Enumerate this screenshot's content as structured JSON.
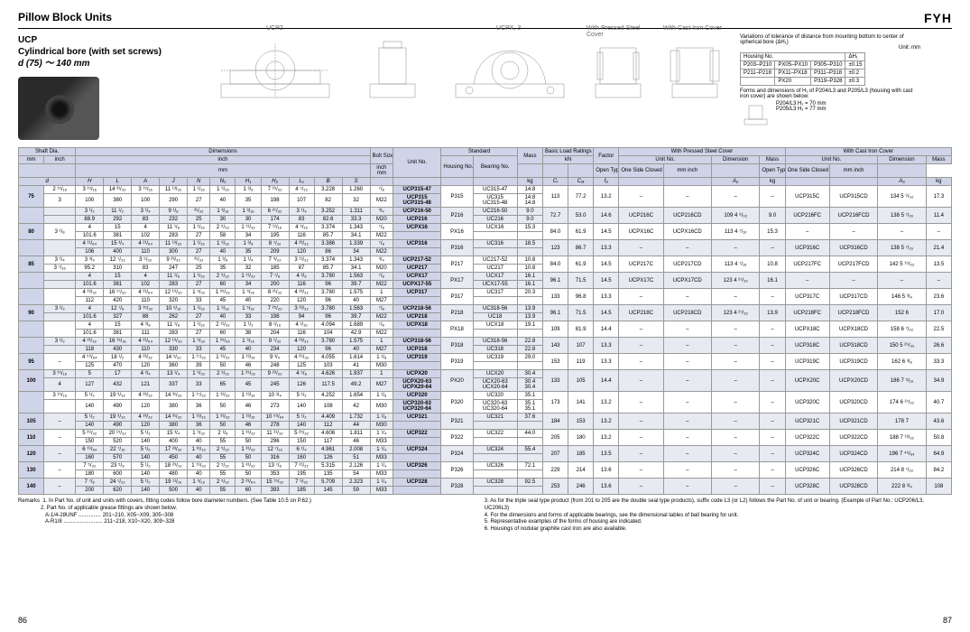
{
  "header": {
    "title": "Pillow Block Units",
    "brand": "FYH"
  },
  "subtitle": {
    "series": "UCP",
    "desc": "Cylindrical bore (with set screws)",
    "range": "d  (75) ～ 140 mm"
  },
  "diagram_labels": {
    "ucp2": "UCP2",
    "ucpx3": "UCPX, 3",
    "pressed": "With Pressed Steel Cover",
    "cast": "With Cast Iron Cover"
  },
  "info_right": {
    "note": "Variations of tolerance of distance from mounting bottom to center of spherical bore (ΔH₁)",
    "unit": "Unit: mm",
    "cols": [
      "Housing No.",
      "",
      "ΔH₁"
    ],
    "rows": [
      [
        "P203–P210",
        "PX05–PX10",
        "P305–P310",
        "±0.15"
      ],
      [
        "P211–P218",
        "PX11–PX18",
        "P311–P318",
        "±0.2"
      ],
      [
        "",
        "PX20",
        "P319–P328",
        "±0.3"
      ]
    ],
    "forms_note": "Forms and dimensions of H₁ of P204/L3 and P205/L3 (housing with cast iron cover) are shown below:",
    "forms_detail1": "P204/L3  H₁ = 70 mm",
    "forms_detail2": "P205/L3  H₁ = 77 mm"
  },
  "col_groups": {
    "shaft": "Shaft Dia.",
    "dimensions": "Dimensions",
    "bolt": "Bolt Size",
    "unitno": "Unit No.",
    "standard": "Standard",
    "housing": "Housing No.",
    "bearing": "Bearing No.",
    "mass": "Mass",
    "basic": "Basic Load Ratings",
    "factor": "Factor",
    "pressed": "With Pressed Steel Cover",
    "cast": "With Cast Iron Cover",
    "open": "Open Type",
    "closed": "One Side Closed Type",
    "dim": "Dimension"
  },
  "unit_labels": {
    "mm": "mm",
    "inch": "inch",
    "kg": "kg",
    "kN": "kN"
  },
  "dim_syms": [
    "d",
    "H",
    "L",
    "A",
    "J",
    "N",
    "N₁",
    "H₁",
    "H₂",
    "L₁",
    "B",
    "S"
  ],
  "load_syms": [
    "Cᵣ",
    "C₀ᵣ",
    "f₀"
  ],
  "cover_syms": [
    "A₂",
    "A₃"
  ],
  "rows": [
    {
      "d_mm": "75",
      "d_in1": "2 ¹⁵/₁₆",
      "d_in2": "3",
      "d1": [
        "3 ¹⁵/₁₆",
        "14 ³¹/₃₂",
        "3 ¹⁵/₁₆",
        "11 ¹³/₃₂",
        "1 ¹/₁₆",
        "1 ⁹/₁₆",
        "1 ³/₈",
        "7 ²⁵/₃₂",
        "4 ⁷/₃₂",
        "3.228",
        "1.260",
        "⁷/₈"
      ],
      "d2": [
        "100",
        "380",
        "100",
        "290",
        "27",
        "40",
        "35",
        "198",
        "107",
        "82",
        "32",
        "M22"
      ],
      "units": [
        "UCP315-47",
        "UCP315",
        "UCP315-48"
      ],
      "hous": "P315",
      "bear": [
        "UC315-47",
        "UC315",
        "UC315-48"
      ],
      "mass": [
        "14.8",
        "14.8",
        "14.8"
      ],
      "cr": "113",
      "cor": "77.2",
      "f0": "13.2",
      "po": "–",
      "pc": "–",
      "pdim": "–",
      "pmass": "–",
      "co": "UCP315C",
      "cc": "UCP315CD",
      "cdim": "134  5 ⁹/₃₂",
      "cmass": "17.3"
    },
    {
      "d_mm": "",
      "d_in1": "",
      "d_in2": "",
      "d1": [
        "3 ¹/₂",
        "11 ¹/₂",
        "3 ¹/₄",
        "9 ¹/₈",
        "³¹/₃₂",
        "1 ³/₁₆",
        "1 ³/₁₆",
        "6 ²⁷/₃₂",
        "3 ¹/₄",
        "3.252",
        "1.311",
        "³/₄"
      ],
      "d2": [
        "88.9",
        "292",
        "83",
        "232",
        "25",
        "30",
        "30",
        "174",
        "83",
        "82.6",
        "33.3",
        "M20"
      ],
      "units": [
        "UCP216-50",
        "UCP216"
      ],
      "hous": "P216",
      "bear": [
        "UC216-50",
        "UC216"
      ],
      "mass": [
        "9.0",
        "9.0"
      ],
      "cr": "72.7",
      "cor": "53.0",
      "f0": "14.6",
      "po": "UCP216C",
      "pc": "UCP216CD",
      "pdim": "109  4 ⁹/₃₂",
      "pmass": "9.0",
      "co": "UCP216FC",
      "cc": "UCP216FCD",
      "cdim": "138  5 ⁷/₁₆",
      "cmass": "11.4"
    },
    {
      "d_mm": "80",
      "d_in1": "3 ¹/₈",
      "d_in2": "",
      "d1": [
        "4",
        "15",
        "4",
        "11 ¹/₈",
        "1 ¹/₁₆",
        "2 ⁹/₃₂",
        "1 ¹¹/₃₂",
        "7 ¹¹/₁₆",
        "4 ⁹/₁₆",
        "3.374",
        "1.343",
        "⁷/₈"
      ],
      "d2": [
        "101.6",
        "381",
        "102",
        "283",
        "27",
        "58",
        "34",
        "195",
        "116",
        "85.7",
        "34.1",
        "M22"
      ],
      "units": [
        "UCPX16"
      ],
      "hous": "PX16",
      "bear": [
        "UCX16"
      ],
      "mass": [
        "15.3"
      ],
      "cr": "84.0",
      "cor": "61.9",
      "f0": "14.5",
      "po": "UCPX16C",
      "pc": "UCPX16CD",
      "pdim": "113  4 ⁷/₁₆",
      "pmass": "15.3",
      "co": "–",
      "cc": "–",
      "cdim": "–",
      "cmass": "–"
    },
    {
      "d_mm": "",
      "d_in1": "",
      "d_in2": "",
      "d1": [
        "4 ¹¹/₆₄",
        "15 ³/₄",
        "4 ²¹/₆₄",
        "11 ¹³/₃₂",
        "1 ¹/₁₆",
        "1 ⁹/₁₆",
        "1 ³/₈",
        "8 ⁷/₃₂",
        "4 ²³/₃₂",
        "3.386",
        "1.339",
        "⁷/₈"
      ],
      "d2": [
        "106",
        "400",
        "110",
        "300",
        "27",
        "40",
        "35",
        "209",
        "120",
        "86",
        "34",
        "M22"
      ],
      "units": [
        "UCP316"
      ],
      "hous": "P316",
      "bear": [
        "UC316"
      ],
      "mass": [
        "18.5"
      ],
      "cr": "123",
      "cor": "86.7",
      "f0": "13.3",
      "po": "–",
      "pc": "–",
      "pdim": "–",
      "pmass": "–",
      "co": "UCP316C",
      "cc": "UCP316CD",
      "cdim": "138  5 ⁷/₁₆",
      "cmass": "21.4"
    },
    {
      "d_mm": "85",
      "d_in1": "3 ¹/₄",
      "d_in2": "3 ⁷/₁₆",
      "d1": [
        "3 ³/₄",
        "12 ⁷/₃₂",
        "3 ⁹/₃₂",
        "9 ²³/₃₂",
        "³¹/₃₂",
        "1 ³/₈",
        "1 ¹/₄",
        "7 ⁹/₃₂",
        "3 ¹¹/₃₂",
        "3.374",
        "1.343",
        "³/₄"
      ],
      "d2": [
        "95.2",
        "310",
        "83",
        "247",
        "25",
        "35",
        "32",
        "185",
        "87",
        "85.7",
        "34.1",
        "M20"
      ],
      "units": [
        "UCP217-52",
        "UCP217"
      ],
      "hous": "P217",
      "bear": [
        "UC217-52",
        "UC217"
      ],
      "mass": [
        "10.8",
        "10.8"
      ],
      "cr": "84.0",
      "cor": "61.9",
      "f0": "14.5",
      "po": "UCP217C",
      "pc": "UCP217CD",
      "pdim": "113  4 ⁷/₁₆",
      "pmass": "10.8",
      "co": "UCP217FC",
      "cc": "UCP217FCD",
      "cdim": "142  5 ¹⁹/₃₂",
      "cmass": "13.5"
    },
    {
      "d_mm": "",
      "d_in1": "",
      "d_in2": "",
      "d1": [
        "4",
        "15",
        "4",
        "11 ¹/₈",
        "1 ¹/₁₆",
        "2 ⁹/₃₂",
        "1 ¹¹/₃₂",
        "7 ⁷/₈",
        "4 ³/₈",
        "3.780",
        "1.563",
        "⁷/₈"
      ],
      "d2": [
        "101.6",
        "381",
        "102",
        "283",
        "27",
        "60",
        "34",
        "200",
        "116",
        "96",
        "39.7",
        "M22"
      ],
      "units": [
        "UCPX17",
        "UCPX17-55"
      ],
      "hous": "PX17",
      "bear": [
        "UCX17",
        "UCX17-55"
      ],
      "mass": [
        "16.1",
        "16.1"
      ],
      "cr": "96.1",
      "cor": "71.5",
      "f0": "14.5",
      "po": "UCPX17C",
      "pc": "UCPX17CD",
      "pdim": "123  4 ²⁷/₃₂",
      "pmass": "16.1",
      "co": "–",
      "cc": "–",
      "cdim": "–",
      "cmass": "–"
    },
    {
      "d_mm": "",
      "d_in1": "",
      "d_in2": "",
      "d1": [
        "4 ¹³/₃₂",
        "16 ¹⁷/₃₂",
        "4 ²¹/₆₄",
        "12 ¹⁹/₃₂",
        "1 ⁹/₃₂",
        "1 ²⁵/₃₂",
        "1 ⁹/₁₆",
        "8 ²¹/₃₂",
        "4 ²³/₃₂",
        "3.780",
        "1.575",
        "1"
      ],
      "d2": [
        "112",
        "420",
        "110",
        "320",
        "33",
        "45",
        "40",
        "220",
        "120",
        "96",
        "40",
        "M27"
      ],
      "units": [
        "UCP317"
      ],
      "hous": "P317",
      "bear": [
        "UC317"
      ],
      "mass": [
        "20.3"
      ],
      "cr": "133",
      "cor": "96.8",
      "f0": "13.3",
      "po": "–",
      "pc": "–",
      "pdim": "–",
      "pmass": "–",
      "co": "UCP317C",
      "cc": "UCP317CD",
      "cdim": "146  5 ³/₄",
      "cmass": "23.6"
    },
    {
      "d_mm": "90",
      "d_in1": "3 ¹/₂",
      "d_in2": "",
      "d1": [
        "4",
        "12 ⁷/₈",
        "3 ¹⁵/₃₂",
        "10 ⁵/₁₆",
        "1 ¹/₁₆",
        "1 ⁹/₁₆",
        "1 ⁵/₁₆",
        "7 ²⁵/₃₂",
        "3 ²³/₃₂",
        "3.780",
        "1.563",
        "⁷/₈"
      ],
      "d2": [
        "101.6",
        "327",
        "88",
        "262",
        "27",
        "40",
        "33",
        "198",
        "94",
        "96",
        "39.7",
        "M22"
      ],
      "units": [
        "UCP218-56",
        "UCP218"
      ],
      "hous": "P218",
      "bear": [
        "UC318-56",
        "UC18"
      ],
      "mass": [
        "13.9",
        "13.9"
      ],
      "cr": "96.1",
      "cor": "71.5",
      "f0": "14.5",
      "po": "UCP218C",
      "pc": "UCP218CD",
      "pdim": "123  4 ²⁷/₃₂",
      "pmass": "13.9",
      "co": "UCP218FC",
      "cc": "UCP218FCD",
      "cdim": "152  6",
      "cmass": "17.0"
    },
    {
      "d_mm": "",
      "d_in1": "",
      "d_in2": "",
      "d1": [
        "4",
        "15",
        "4 ³/₈",
        "11 ¹/₈",
        "1 ¹/₁₆",
        "2 ¹¹/₃₂",
        "1 ¹/₂",
        "8 ¹/₁₆",
        "4 ¹/₁₆",
        "4.094",
        "1.689",
        "⁷/₈"
      ],
      "d2": [
        "101.6",
        "381",
        "111",
        "283",
        "27",
        "60",
        "38",
        "204",
        "116",
        "104",
        "42.9",
        "M22"
      ],
      "units": [
        "UCPX18"
      ],
      "hous": "PX18",
      "bear": [
        "UCX18"
      ],
      "mass": [
        "19.1"
      ],
      "cr": "109",
      "cor": "81.9",
      "f0": "14.4",
      "po": "–",
      "pc": "–",
      "pdim": "–",
      "pmass": "–",
      "co": "UCPX18C",
      "cc": "UCPX18CD",
      "cdim": "158  6 ⁷/₃₂",
      "cmass": "22.5"
    },
    {
      "d_mm": "",
      "d_in1": "3 ¹/₂",
      "d_in2": "",
      "d1": [
        "4 ²¹/₃₂",
        "16 ¹⁵/₁₆",
        "4 ²¹/₆₄",
        "12 ¹⁹/₃₂",
        "1 ⁹/₃₂",
        "1 ²⁵/₃₂",
        "1 ⁹/₁₆",
        "9 ⁷/₃₂",
        "4 ²³/₃₂",
        "3.780",
        "1.575",
        "1"
      ],
      "d2": [
        "118",
        "430",
        "110",
        "330",
        "33",
        "45",
        "40",
        "234",
        "120",
        "96",
        "40",
        "M27"
      ],
      "units": [
        "UCP318-56",
        "UCP318"
      ],
      "hous": "P318",
      "bear": [
        "UC318-56",
        "UC318"
      ],
      "mass": [
        "22.8",
        "22.8"
      ],
      "cr": "143",
      "cor": "107",
      "f0": "13.3",
      "po": "–",
      "pc": "–",
      "pdim": "–",
      "pmass": "–",
      "co": "UCP318C",
      "cc": "UCP318CD",
      "cdim": "150  5 ²⁹/₃₂",
      "cmass": "26.6"
    },
    {
      "d_mm": "95",
      "d_in1": "–",
      "d_in2": "",
      "d1": [
        "4 ⁵⁹/₆₄",
        "18 ¹/₂",
        "4 ²³/₃₂",
        "14 ⁵/₃₂",
        "1 ¹⁷/₃₂",
        "1 ³¹/₃₂",
        "1 ¹³/₁₆",
        "9 ³/₄",
        "4 ²⁹/₃₂",
        "4.055",
        "1.614",
        "1 ¹/₈"
      ],
      "d2": [
        "125",
        "470",
        "120",
        "360",
        "39",
        "50",
        "46",
        "248",
        "125",
        "103",
        "41",
        "M30"
      ],
      "units": [
        "UCP319"
      ],
      "hous": "P319",
      "bear": [
        "UC319"
      ],
      "mass": [
        "29.0"
      ],
      "cr": "153",
      "cor": "119",
      "f0": "13.3",
      "po": "–",
      "pc": "–",
      "pdim": "–",
      "pmass": "–",
      "co": "UCP319C",
      "cc": "UCP319CD",
      "cdim": "162  6 ³/₈",
      "cmass": "33.3"
    },
    {
      "d_mm": "100",
      "d_in1": "3 ¹⁵/₁₆",
      "d_in2": "4",
      "d1": [
        "5",
        "17",
        "4 ³/₄",
        "13 ¹/₄",
        "1 ⁹/₃₂",
        "2 ⁹/₁₆",
        "1 ²⁵/₃₂",
        "9 ²⁹/₃₂",
        "4 ⁵/₈",
        "4.626",
        "1.937",
        "1"
      ],
      "d2": [
        "127",
        "432",
        "121",
        "337",
        "33",
        "65",
        "45",
        "245",
        "126",
        "117.5",
        "49.2",
        "M27"
      ],
      "units": [
        "UCPX20",
        "UCPX20-63",
        "UCPX20-64"
      ],
      "hous": "PX20",
      "bear": [
        "UCX20",
        "UCX20-63",
        "UCX20-64"
      ],
      "mass": [
        "30.4",
        "30.4",
        "30.4"
      ],
      "cr": "133",
      "cor": "105",
      "f0": "14.4",
      "po": "–",
      "pc": "–",
      "pdim": "–",
      "pmass": "–",
      "co": "UCPX20C",
      "cc": "UCPX20CD",
      "cdim": "186  7 ⁵/₁₆",
      "cmass": "34.9"
    },
    {
      "d_mm": "",
      "d_in1": "3 ¹⁵/₁₆",
      "d_in2": "",
      "d1": [
        "5 ¹/₂",
        "19 ⁹/₃₂",
        "4 ²³/₃₂",
        "14 ³¹/₃₂",
        "1 ¹⁷/₃₂",
        "1 ³¹/₃₂",
        "1 ¹³/₁₆",
        "10 ³/₄",
        "5 ¹/₂",
        "4.252",
        "1.654",
        "1 ¹/₈"
      ],
      "d2": [
        "140",
        "490",
        "120",
        "380",
        "36",
        "50",
        "46",
        "273",
        "140",
        "108",
        "42",
        "M30"
      ],
      "units": [
        "UCP320",
        "UCP320-63",
        "UCP320-64"
      ],
      "hous": "P320",
      "bear": [
        "UC320",
        "UC320-63",
        "UC320-64"
      ],
      "mass": [
        "35.1",
        "35.1",
        "35.1"
      ],
      "cr": "173",
      "cor": "141",
      "f0": "13.2",
      "po": "–",
      "pc": "–",
      "pdim": "–",
      "pmass": "–",
      "co": "UCP320C",
      "cc": "UCP320CD",
      "cdim": "174  6 ²⁷/₃₂",
      "cmass": "40.7"
    },
    {
      "d_mm": "105",
      "d_in1": "–",
      "d_in2": "",
      "d1": [
        "5 ¹/₂",
        "19 ⁹/₃₂",
        "4 ²³/₃₂",
        "14 ³¹/₃₂",
        "1 ¹³/₃₂",
        "1 ³¹/₃₂",
        "1 ¹³/₁₆",
        "10 ⁵⁹/₆₄",
        "5 ¹/₂",
        "4.409",
        "1.732",
        "1 ¹/₈"
      ],
      "d2": [
        "140",
        "490",
        "120",
        "380",
        "36",
        "50",
        "46",
        "278",
        "140",
        "112",
        "44",
        "M30"
      ],
      "units": [
        "UCP321"
      ],
      "hous": "P321",
      "bear": [
        "UC321"
      ],
      "mass": [
        "37.6"
      ],
      "cr": "184",
      "cor": "153",
      "f0": "13.2",
      "po": "–",
      "pc": "–",
      "pdim": "–",
      "pmass": "–",
      "co": "UCP321C",
      "cc": "UCP321CD",
      "cdim": "178  7",
      "cmass": "43.6"
    },
    {
      "d_mm": "110",
      "d_in1": "–",
      "d_in2": "",
      "d1": [
        "5 ²⁹/₃₂",
        "20 ¹⁵/₃₂",
        "5 ¹/₂",
        "15 ³/₄",
        "1 ⁹/₃₂",
        "2 ¹/₈",
        "1 ³¹/₃₂",
        "11 ²¹/₃₂",
        "5 ²⁵/₃₂",
        "4.606",
        "1.811",
        "1 ¹/₄"
      ],
      "d2": [
        "150",
        "520",
        "140",
        "400",
        "40",
        "55",
        "50",
        "296",
        "150",
        "117",
        "46",
        "M33"
      ],
      "units": [
        "UCP322"
      ],
      "hous": "P322",
      "bear": [
        "UC322"
      ],
      "mass": [
        "44.0"
      ],
      "cr": "205",
      "cor": "180",
      "f0": "13.2",
      "po": "–",
      "pc": "–",
      "pdim": "–",
      "pmass": "–",
      "co": "UCP322C",
      "cc": "UCP322CD",
      "cdim": "188  7 ¹³/₃₂",
      "cmass": "50.8"
    },
    {
      "d_mm": "120",
      "d_in1": "–",
      "d_in2": "",
      "d1": [
        "6 ¹⁹/₆₄",
        "22 ⁷/₁₆",
        "5 ¹/₂",
        "17 ²³/₃₂",
        "1 ³¹/₃₂",
        "2 ⁵/₃₂",
        "1 ³¹/₃₂",
        "12 ⁷/₁₆",
        "6 ¹/₄",
        "4.961",
        "2.008",
        "1 ¹/₄"
      ],
      "d2": [
        "160",
        "570",
        "140",
        "450",
        "40",
        "55",
        "50",
        "316",
        "160",
        "126",
        "51",
        "M33"
      ],
      "units": [
        "UCP324"
      ],
      "hous": "P324",
      "bear": [
        "UC324"
      ],
      "mass": [
        "55.4"
      ],
      "cr": "207",
      "cor": "185",
      "f0": "13.5",
      "po": "–",
      "pc": "–",
      "pdim": "–",
      "pmass": "–",
      "co": "UCP324C",
      "cc": "UCP324CD",
      "cdim": "196  7 ⁴⁵/₆₄",
      "cmass": "64.9"
    },
    {
      "d_mm": "130",
      "d_in1": "–",
      "d_in2": "",
      "d1": [
        "7 ⁵/₃₂",
        "23 ⁵/₈",
        "5 ¹/₂",
        "18 ²⁹/₃₂",
        "1 ¹⁹/₃₂",
        "2 ⁵/₃₂",
        "1 ³¹/₃₂",
        "13 ⁷/₈",
        "7 ²¹/₃₂",
        "5.315",
        "2.126",
        "1 ¹/₄"
      ],
      "d2": [
        "180",
        "600",
        "140",
        "480",
        "40",
        "55",
        "50",
        "353",
        "195",
        "135",
        "54",
        "M33"
      ],
      "units": [
        "UCP326"
      ],
      "hous": "P326",
      "bear": [
        "UC326"
      ],
      "mass": [
        "72.1"
      ],
      "cr": "229",
      "cor": "214",
      "f0": "13.6",
      "po": "–",
      "pc": "–",
      "pdim": "–",
      "pmass": "–",
      "co": "UCP326C",
      "cc": "UCP326CD",
      "cdim": "214  8 ⁷/₁₆",
      "cmass": "84.2"
    },
    {
      "d_mm": "140",
      "d_in1": "–",
      "d_in2": "",
      "d1": [
        "7 ⁷/₈",
        "24 ⁷/₃₂",
        "5 ¹/₂",
        "19 ¹¹/₁₆",
        "1 ⁹/₁₆",
        "2 ⁵/₃₂",
        "2 ²³/₆₄",
        "15 ¹⁵/₃₂",
        "7 ⁹/₃₂",
        "5.709",
        "2.323",
        "1 ¹/₄"
      ],
      "d2": [
        "200",
        "620",
        "140",
        "500",
        "40",
        "55",
        "60",
        "393",
        "185",
        "145",
        "59",
        "M33"
      ],
      "units": [
        "UCP328"
      ],
      "hous": "P328",
      "bear": [
        "UC328"
      ],
      "mass": [
        "92.5"
      ],
      "cr": "253",
      "cor": "246",
      "f0": "13.6",
      "po": "–",
      "pc": "–",
      "pdim": "–",
      "pmass": "–",
      "co": "UCP328C",
      "cc": "UCP328CD",
      "cdim": "222  8 ³/₄",
      "cmass": "108"
    }
  ],
  "remarks": {
    "title": "Remarks",
    "r1": "1. In Part No. of unit and units with covers, fitting codes follow bore diameter numbers. (See Table 10.5 on P.62.)",
    "r2": "2. Part No. of applicable grease fittings are shown below.",
    "r2a": "A-1/4-28UNF ............... 201~210, X05~X09, 305~308",
    "r2b": "A-R1/8 .......................... 211~218, X10~X20, 309~328",
    "r3": "3. As for the triple seal type product (from 201 to 205 are the double seal type products), suffix code L3 (or L2) follows the Part No. of unit or bearing. (Example of Part No.: UCP206/L3, UC206L3)",
    "r4": "4. For the dimensions and forms of applicable bearings, see the dimensional tables of ball bearing for unit.",
    "r5": "5. Representative examples of the forms of housing are indicated.",
    "r6": "6. Housings of nodular graphite cast iron are also available."
  },
  "page_left": "86",
  "page_right": "87"
}
